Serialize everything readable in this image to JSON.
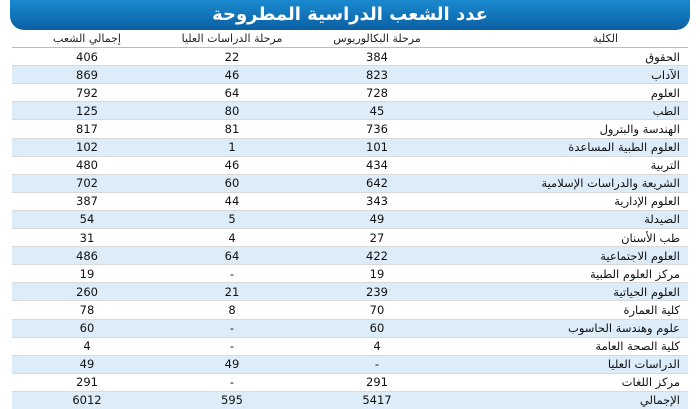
{
  "title": "عدد الشعب الدراسية المطروحة",
  "headers": {
    "college": "الكلية",
    "bachelor": "مرحلة البكالوريوس",
    "graduate": "مرحلة الدراسات العليا",
    "total": "إجمالي الشعب"
  },
  "rows": [
    {
      "college": "الحقوق",
      "bachelor": "384",
      "graduate": "22",
      "total": "406"
    },
    {
      "college": "الآداب",
      "bachelor": "823",
      "graduate": "46",
      "total": "869"
    },
    {
      "college": "العلوم",
      "bachelor": "728",
      "graduate": "64",
      "total": "792"
    },
    {
      "college": "الطب",
      "bachelor": "45",
      "graduate": "80",
      "total": "125"
    },
    {
      "college": "الهندسة والبترول",
      "bachelor": "736",
      "graduate": "81",
      "total": "817"
    },
    {
      "college": "العلوم الطبية المساعدة",
      "bachelor": "101",
      "graduate": "1",
      "total": "102"
    },
    {
      "college": "التربية",
      "bachelor": "434",
      "graduate": "46",
      "total": "480"
    },
    {
      "college": "الشريعة والدراسات الإسلامية",
      "bachelor": "642",
      "graduate": "60",
      "total": "702"
    },
    {
      "college": "العلوم الإدارية",
      "bachelor": "343",
      "graduate": "44",
      "total": "387"
    },
    {
      "college": "الصيدلة",
      "bachelor": "49",
      "graduate": "5",
      "total": "54"
    },
    {
      "college": "طب الأسنان",
      "bachelor": "27",
      "graduate": "4",
      "total": "31"
    },
    {
      "college": "العلوم الاجتماعية",
      "bachelor": "422",
      "graduate": "64",
      "total": "486"
    },
    {
      "college": "مركز العلوم الطبية",
      "bachelor": "19",
      "graduate": "-",
      "total": "19"
    },
    {
      "college": "العلوم الحياتية",
      "bachelor": "239",
      "graduate": "21",
      "total": "260"
    },
    {
      "college": "كلية العمارة",
      "bachelor": "70",
      "graduate": "8",
      "total": "78"
    },
    {
      "college": "علوم وهندسة الحاسوب",
      "bachelor": "60",
      "graduate": "-",
      "total": "60"
    },
    {
      "college": "كلية الصحة العامة",
      "bachelor": "4",
      "graduate": "-",
      "total": "4"
    },
    {
      "college": "الدراسات العليا",
      "bachelor": "-",
      "graduate": "49",
      "total": "49"
    },
    {
      "college": "مركز اللغات",
      "bachelor": "291",
      "graduate": "-",
      "total": "291"
    },
    {
      "college": "الإجمالي",
      "bachelor": "5417",
      "graduate": "595",
      "total": "6012"
    }
  ]
}
